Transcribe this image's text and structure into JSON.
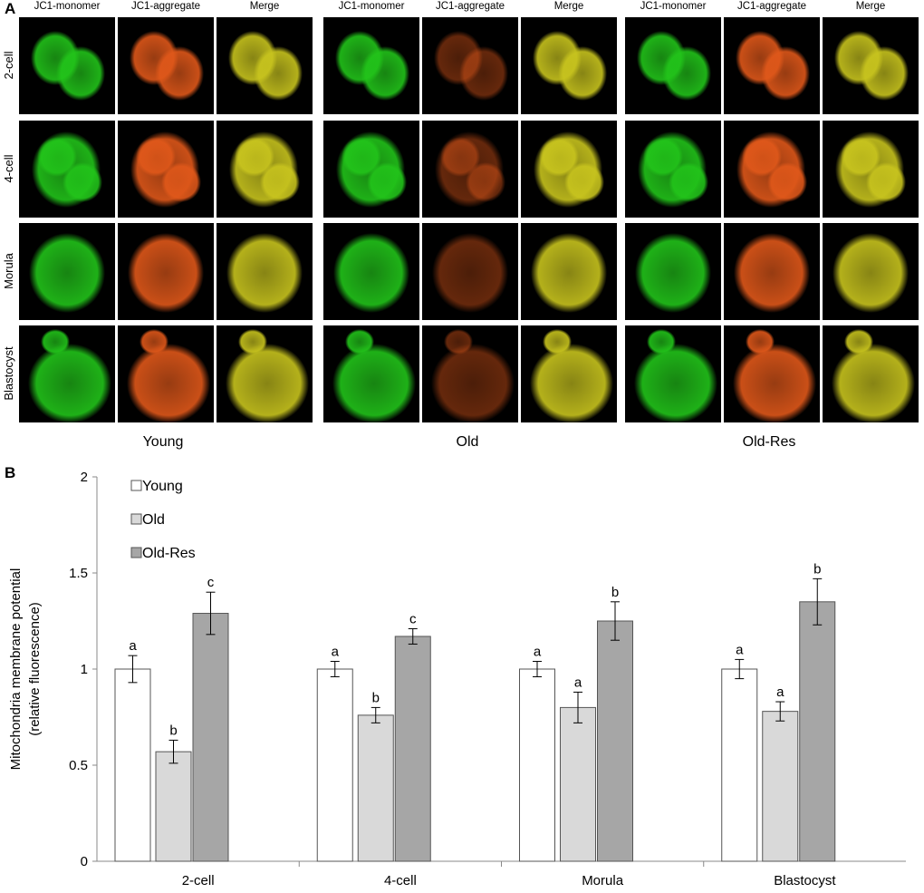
{
  "panel_a": {
    "letter": "A",
    "groups": [
      {
        "name": "Young"
      },
      {
        "name": "Old"
      },
      {
        "name": "Old-Res"
      }
    ],
    "columns": [
      "JC1-monomer",
      "JC1-aggregate",
      "Merge"
    ],
    "rows": [
      "2-cell",
      "4-cell",
      "Morula",
      "Blastocyst"
    ],
    "channel_colors": {
      "monomer": "#22c41a",
      "aggregate": "#e0581a",
      "merge": "#c8c41e"
    }
  },
  "panel_b": {
    "letter": "B"
  },
  "chart_data": {
    "type": "bar",
    "categories": [
      "2-cell",
      "4-cell",
      "Morula",
      "Blastocyst"
    ],
    "series": [
      {
        "name": "Young",
        "color": "#ffffff",
        "values": [
          1.0,
          1.0,
          1.0,
          1.0
        ],
        "errors": [
          0.07,
          0.04,
          0.04,
          0.05
        ],
        "letters": [
          "a",
          "a",
          "a",
          "a"
        ]
      },
      {
        "name": "Old",
        "color": "#d9d9d9",
        "values": [
          0.57,
          0.76,
          0.8,
          0.78
        ],
        "errors": [
          0.06,
          0.04,
          0.08,
          0.05
        ],
        "letters": [
          "b",
          "b",
          "a",
          "a"
        ]
      },
      {
        "name": "Old-Res",
        "color": "#a6a6a6",
        "values": [
          1.29,
          1.17,
          1.25,
          1.35
        ],
        "errors": [
          0.11,
          0.04,
          0.1,
          0.12
        ],
        "letters": [
          "c",
          "c",
          "b",
          "b"
        ]
      }
    ],
    "ylabel_line1": "Mitochondria membrane potential",
    "ylabel_line2": "(relative fluorescence)",
    "yticks": [
      "0",
      "0.5",
      "1",
      "1.5",
      "2"
    ],
    "ylim": [
      0,
      2
    ],
    "grid": false,
    "legend_position": "top-left"
  }
}
